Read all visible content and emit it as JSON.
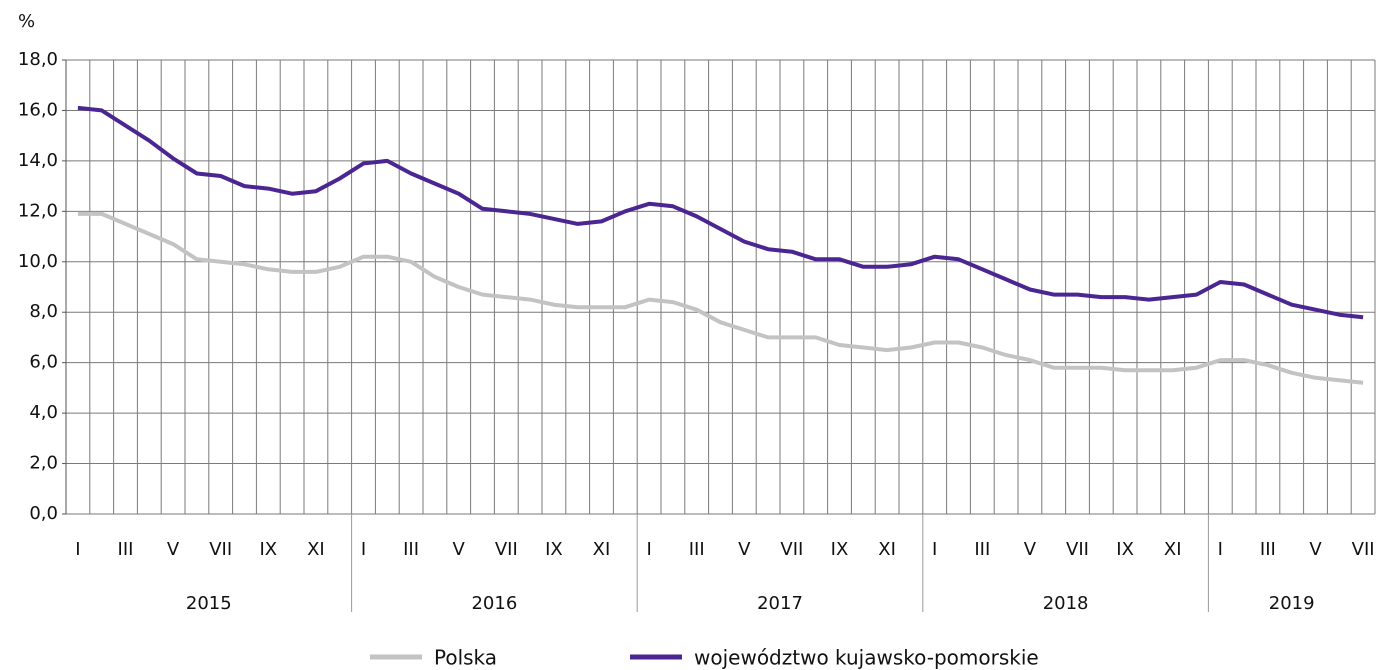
{
  "chart_data": {
    "type": "line",
    "ylabel": "%",
    "categories": [
      "I",
      null,
      "III",
      null,
      "V",
      null,
      "VII",
      null,
      "IX",
      null,
      "XI",
      null,
      "I",
      null,
      "III",
      null,
      "V",
      null,
      "VII",
      null,
      "IX",
      null,
      "XI",
      null,
      "I",
      null,
      "III",
      null,
      "V",
      null,
      "VII",
      null,
      "IX",
      null,
      "XI",
      null,
      "I",
      null,
      "III",
      null,
      "V",
      null,
      "VII",
      null,
      "IX",
      null,
      "XI",
      null,
      "I",
      null,
      "III",
      null,
      "V",
      null,
      "VII"
    ],
    "years": [
      "2015",
      "2016",
      "2017",
      "2018",
      "2019"
    ],
    "series": [
      {
        "name": "Polska",
        "color": "#c3c3c3",
        "values": [
          11.9,
          11.9,
          11.5,
          11.1,
          10.7,
          10.1,
          10.0,
          9.9,
          9.7,
          9.6,
          9.6,
          9.8,
          10.2,
          10.2,
          10.0,
          9.4,
          9.0,
          8.7,
          8.6,
          8.5,
          8.3,
          8.2,
          8.2,
          8.2,
          8.5,
          8.4,
          8.1,
          7.6,
          7.3,
          7.0,
          7.0,
          7.0,
          6.7,
          6.6,
          6.5,
          6.6,
          6.8,
          6.8,
          6.6,
          6.3,
          6.1,
          5.8,
          5.8,
          5.8,
          5.7,
          5.7,
          5.7,
          5.8,
          6.1,
          6.1,
          5.9,
          5.6,
          5.4,
          5.3,
          5.2
        ]
      },
      {
        "name": "województwo kujawsko-pomorskie",
        "color": "#4b2592",
        "values": [
          16.1,
          16.0,
          15.4,
          14.8,
          14.1,
          13.5,
          13.4,
          13.0,
          12.9,
          12.7,
          12.8,
          13.3,
          13.9,
          14.0,
          13.5,
          13.1,
          12.7,
          12.1,
          12.0,
          11.9,
          11.7,
          11.5,
          11.6,
          12.0,
          12.3,
          12.2,
          11.8,
          11.3,
          10.8,
          10.5,
          10.4,
          10.1,
          10.1,
          9.8,
          9.8,
          9.9,
          10.2,
          10.1,
          9.7,
          9.3,
          8.9,
          8.7,
          8.7,
          8.6,
          8.6,
          8.5,
          8.6,
          8.7,
          9.2,
          9.1,
          8.7,
          8.3,
          8.1,
          7.9,
          7.8
        ]
      }
    ],
    "ylim": [
      0,
      18
    ],
    "yticks": [
      {
        "value": 0,
        "label": "0,0"
      },
      {
        "value": 2,
        "label": "2,0"
      },
      {
        "value": 4,
        "label": "4,0"
      },
      {
        "value": 6,
        "label": "6,0"
      },
      {
        "value": 8,
        "label": "8,0"
      },
      {
        "value": 10,
        "label": "10,0"
      },
      {
        "value": 12,
        "label": "12,0"
      },
      {
        "value": 14,
        "label": "14,0"
      },
      {
        "value": 16,
        "label": "16,0"
      },
      {
        "value": 18,
        "label": "18,0"
      }
    ],
    "grid": true,
    "legend": "bottom"
  }
}
